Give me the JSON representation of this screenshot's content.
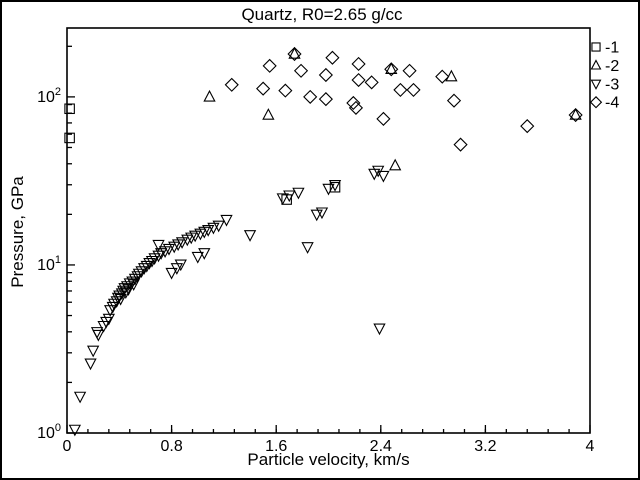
{
  "window": {
    "background": "#ffffff",
    "frame_color": "#000000",
    "accent": "#000000"
  },
  "chart_data": {
    "type": "scatter",
    "title": "Quartz, R0=2.65 g/cc",
    "xlabel": "Particle velocity, km/s",
    "ylabel": "Pressure, GPa",
    "xlim": [
      0,
      4
    ],
    "yscale": "log",
    "ylim": [
      1,
      257
    ],
    "grid": false,
    "legend_position": "outside-right-top",
    "x_ticks": {
      "major": [
        0,
        0.8,
        1.6,
        2.4,
        3.2,
        4
      ],
      "labels": [
        "0",
        "0.8",
        "1.6",
        "2.4",
        "3.2",
        "4"
      ],
      "minor_step": 0.16
    },
    "y_ticks": {
      "major": [
        1,
        10,
        100
      ],
      "labels": [
        {
          "base": "10",
          "exp": "0"
        },
        {
          "base": "10",
          "exp": "1"
        },
        {
          "base": "10",
          "exp": "2"
        }
      ],
      "minor": [
        2,
        3,
        4,
        5,
        6,
        7,
        8,
        9,
        20,
        30,
        40,
        50,
        60,
        70,
        80,
        90,
        200
      ]
    },
    "series": [
      {
        "name": "-1",
        "marker": "square",
        "color": "#000000",
        "points": [
          [
            0.02,
            85
          ],
          [
            0.02,
            57
          ],
          [
            1.68,
            24.5
          ],
          [
            2.05,
            29
          ]
        ]
      },
      {
        "name": "-2",
        "marker": "triangle-up",
        "color": "#000000",
        "points": [
          [
            1.09,
            100
          ],
          [
            1.54,
            78
          ],
          [
            1.74,
            180
          ],
          [
            2.48,
            146
          ],
          [
            2.51,
            39
          ],
          [
            2.94,
            132
          ],
          [
            3.89,
            78
          ]
        ]
      },
      {
        "name": "-3",
        "marker": "triangle-down",
        "color": "#000000",
        "points": [
          [
            0.06,
            1.05
          ],
          [
            0.1,
            1.65
          ],
          [
            0.18,
            2.6
          ],
          [
            0.2,
            3.1
          ],
          [
            0.23,
            4.0
          ],
          [
            0.24,
            3.85
          ],
          [
            0.28,
            4.35
          ],
          [
            0.3,
            4.6
          ],
          [
            0.32,
            4.8
          ],
          [
            0.33,
            5.4
          ],
          [
            0.35,
            5.65
          ],
          [
            0.36,
            5.9
          ],
          [
            0.38,
            6.1
          ],
          [
            0.39,
            6.4
          ],
          [
            0.4,
            6.6
          ],
          [
            0.41,
            6.3
          ],
          [
            0.42,
            6.8
          ],
          [
            0.43,
            7.05
          ],
          [
            0.44,
            7.3
          ],
          [
            0.45,
            6.9
          ],
          [
            0.46,
            7.5
          ],
          [
            0.47,
            7.2
          ],
          [
            0.48,
            7.8
          ],
          [
            0.5,
            8.0
          ],
          [
            0.51,
            7.7
          ],
          [
            0.52,
            8.3
          ],
          [
            0.54,
            8.6
          ],
          [
            0.55,
            8.9
          ],
          [
            0.57,
            9.2
          ],
          [
            0.59,
            9.6
          ],
          [
            0.61,
            9.9
          ],
          [
            0.63,
            10.3
          ],
          [
            0.65,
            10.6
          ],
          [
            0.67,
            11.0
          ],
          [
            0.7,
            11.4
          ],
          [
            0.72,
            11.8
          ],
          [
            0.7,
            13.2
          ],
          [
            0.8,
            9.0
          ],
          [
            0.84,
            9.6
          ],
          [
            0.87,
            10.1
          ],
          [
            0.75,
            12.1
          ],
          [
            0.78,
            12.5
          ],
          [
            0.82,
            12.9
          ],
          [
            0.85,
            13.3
          ],
          [
            0.88,
            13.7
          ],
          [
            0.92,
            14.2
          ],
          [
            0.95,
            14.6
          ],
          [
            0.98,
            15.0
          ],
          [
            1.02,
            15.4
          ],
          [
            1.05,
            15.8
          ],
          [
            1.08,
            16.2
          ],
          [
            1.12,
            16.7
          ],
          [
            1.16,
            17.2
          ],
          [
            1.0,
            11.2
          ],
          [
            1.05,
            11.8
          ],
          [
            1.22,
            18.6
          ],
          [
            1.4,
            15.1
          ],
          [
            1.65,
            25.0
          ],
          [
            1.7,
            26.0
          ],
          [
            1.77,
            27.0
          ],
          [
            1.84,
            12.8
          ],
          [
            1.91,
            20.0
          ],
          [
            1.95,
            20.6
          ],
          [
            2.0,
            28.5
          ],
          [
            2.05,
            30.0
          ],
          [
            2.35,
            35.0
          ],
          [
            2.38,
            36.5
          ],
          [
            2.42,
            34.0
          ],
          [
            2.39,
            4.2
          ]
        ]
      },
      {
        "name": "-4",
        "marker": "diamond",
        "color": "#000000",
        "points": [
          [
            1.26,
            118
          ],
          [
            1.5,
            112
          ],
          [
            1.55,
            153
          ],
          [
            1.67,
            109
          ],
          [
            1.74,
            180
          ],
          [
            1.79,
            143
          ],
          [
            1.86,
            100
          ],
          [
            1.98,
            135
          ],
          [
            1.98,
            97
          ],
          [
            2.03,
            171
          ],
          [
            2.19,
            92
          ],
          [
            2.21,
            86
          ],
          [
            2.23,
            157
          ],
          [
            2.23,
            126
          ],
          [
            2.33,
            122
          ],
          [
            2.42,
            74
          ],
          [
            2.48,
            146
          ],
          [
            2.55,
            110
          ],
          [
            2.62,
            143
          ],
          [
            2.65,
            110
          ],
          [
            2.87,
            132
          ],
          [
            2.96,
            95
          ],
          [
            3.01,
            52
          ],
          [
            3.52,
            67
          ],
          [
            3.89,
            78
          ]
        ]
      }
    ]
  }
}
